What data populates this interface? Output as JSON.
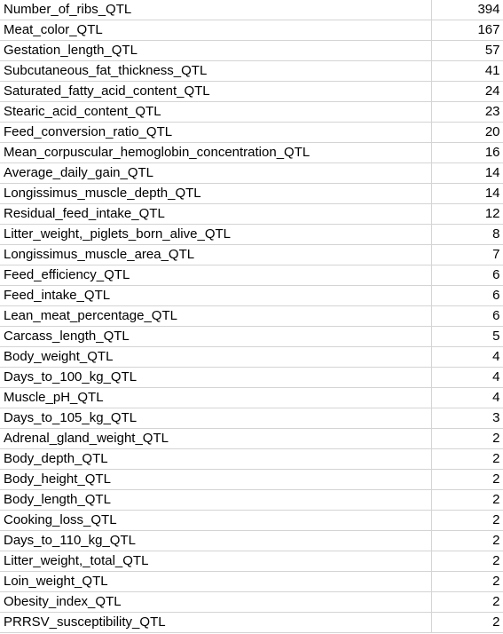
{
  "rows": [
    {
      "name": "Number_of_ribs_QTL",
      "count": "394"
    },
    {
      "name": "Meat_color_QTL",
      "count": "167"
    },
    {
      "name": "Gestation_length_QTL",
      "count": "57"
    },
    {
      "name": "Subcutaneous_fat_thickness_QTL",
      "count": "41"
    },
    {
      "name": "Saturated_fatty_acid_content_QTL",
      "count": "24"
    },
    {
      "name": "Stearic_acid_content_QTL",
      "count": "23"
    },
    {
      "name": "Feed_conversion_ratio_QTL",
      "count": "20"
    },
    {
      "name": "Mean_corpuscular_hemoglobin_concentration_QTL",
      "count": "16"
    },
    {
      "name": "Average_daily_gain_QTL",
      "count": "14"
    },
    {
      "name": "Longissimus_muscle_depth_QTL",
      "count": "14"
    },
    {
      "name": "Residual_feed_intake_QTL",
      "count": "12"
    },
    {
      "name": "Litter_weight,_piglets_born_alive_QTL",
      "count": "8"
    },
    {
      "name": "Longissimus_muscle_area_QTL",
      "count": "7"
    },
    {
      "name": "Feed_efficiency_QTL",
      "count": "6"
    },
    {
      "name": "Feed_intake_QTL",
      "count": "6"
    },
    {
      "name": "Lean_meat_percentage_QTL",
      "count": "6"
    },
    {
      "name": "Carcass_length_QTL",
      "count": "5"
    },
    {
      "name": "Body_weight_QTL",
      "count": "4"
    },
    {
      "name": "Days_to_100_kg_QTL",
      "count": "4"
    },
    {
      "name": "Muscle_pH_QTL",
      "count": "4"
    },
    {
      "name": "Days_to_105_kg_QTL",
      "count": "3"
    },
    {
      "name": "Adrenal_gland_weight_QTL",
      "count": "2"
    },
    {
      "name": "Body_depth_QTL",
      "count": "2"
    },
    {
      "name": "Body_height_QTL",
      "count": "2"
    },
    {
      "name": "Body_length_QTL",
      "count": "2"
    },
    {
      "name": "Cooking_loss_QTL",
      "count": "2"
    },
    {
      "name": "Days_to_110_kg_QTL",
      "count": "2"
    },
    {
      "name": "Litter_weight,_total_QTL",
      "count": "2"
    },
    {
      "name": "Loin_weight_QTL",
      "count": "2"
    },
    {
      "name": "Obesity_index_QTL",
      "count": "2"
    },
    {
      "name": "PRRSV_susceptibility_QTL",
      "count": "2"
    }
  ]
}
